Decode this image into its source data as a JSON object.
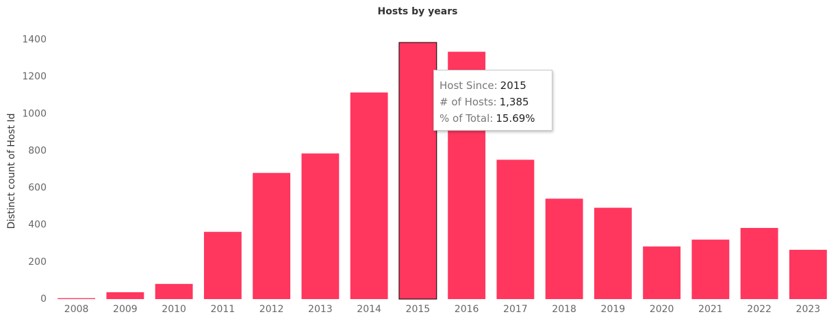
{
  "chart_data": {
    "type": "bar",
    "title": "Hosts by years",
    "xlabel": "",
    "ylabel": "Distinct count of Host Id",
    "categories": [
      "2008",
      "2009",
      "2010",
      "2011",
      "2012",
      "2013",
      "2014",
      "2015",
      "2016",
      "2017",
      "2018",
      "2019",
      "2020",
      "2021",
      "2022",
      "2023"
    ],
    "values": [
      5,
      37,
      82,
      363,
      681,
      786,
      1115,
      1385,
      1335,
      752,
      542,
      493,
      284,
      321,
      384,
      266
    ],
    "ylim": [
      0,
      1400
    ],
    "yticks": [
      0,
      200,
      400,
      600,
      800,
      1000,
      1200,
      1400
    ],
    "grid": false,
    "bar_color": "#ff365e",
    "highlighted_category": "2015"
  },
  "tooltip": {
    "rows": [
      {
        "key": "Host Since:",
        "value": "2015"
      },
      {
        "key": "# of Hosts:",
        "value": "1,385"
      },
      {
        "key": "% of Total:",
        "value": "15.69%"
      }
    ]
  }
}
